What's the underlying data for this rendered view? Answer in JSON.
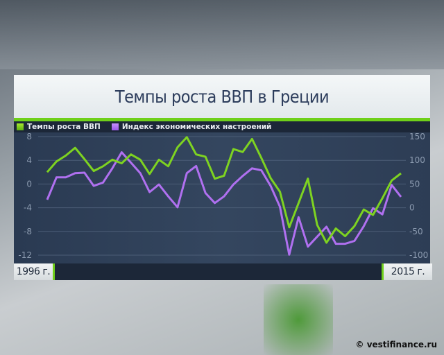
{
  "chart_data": {
    "type": "line",
    "title": "Темпы роста ВВП в Греции",
    "x_start_label": "1996 г.",
    "x_end_label": "2015 г.",
    "y_left": {
      "ticks": [
        8,
        4,
        0,
        -4,
        -8,
        -12
      ],
      "range": [
        -12,
        8
      ]
    },
    "y_right": {
      "ticks": [
        150,
        100,
        50,
        0,
        -50,
        -100
      ],
      "range": [
        -100,
        150
      ]
    },
    "grid": true,
    "legend_position": "top-left",
    "series": [
      {
        "name": "Темпы роста ВВП",
        "axis": "left",
        "color": "#7ed321",
        "values": [
          2.0,
          3.8,
          4.8,
          6.1,
          4.2,
          2.2,
          3.0,
          4.1,
          3.5,
          5.0,
          4.1,
          1.7,
          4.1,
          3.0,
          6.2,
          7.9,
          5.0,
          4.6,
          0.9,
          1.4,
          5.9,
          5.4,
          7.6,
          4.4,
          1.0,
          -1.3,
          -7.3,
          -3.2,
          0.9,
          -6.9,
          -9.9,
          -7.5,
          -8.8,
          -7.1,
          -4.3,
          -5.2,
          -2.4,
          0.6,
          1.8
        ]
      },
      {
        "name": "Индекс экономических настроений",
        "axis": "right",
        "color": "#b070f0",
        "values": [
          17,
          64,
          64,
          73,
          74,
          46,
          53,
          83,
          117,
          95,
          73,
          33,
          49,
          24,
          1,
          73,
          88,
          31,
          10,
          24,
          49,
          67,
          83,
          79,
          46,
          2,
          -99,
          -20,
          -82,
          -61,
          -40,
          -76,
          -76,
          -70,
          -39,
          -1,
          -14,
          48,
          23
        ]
      }
    ]
  },
  "credit": "© vestifinance.ru"
}
